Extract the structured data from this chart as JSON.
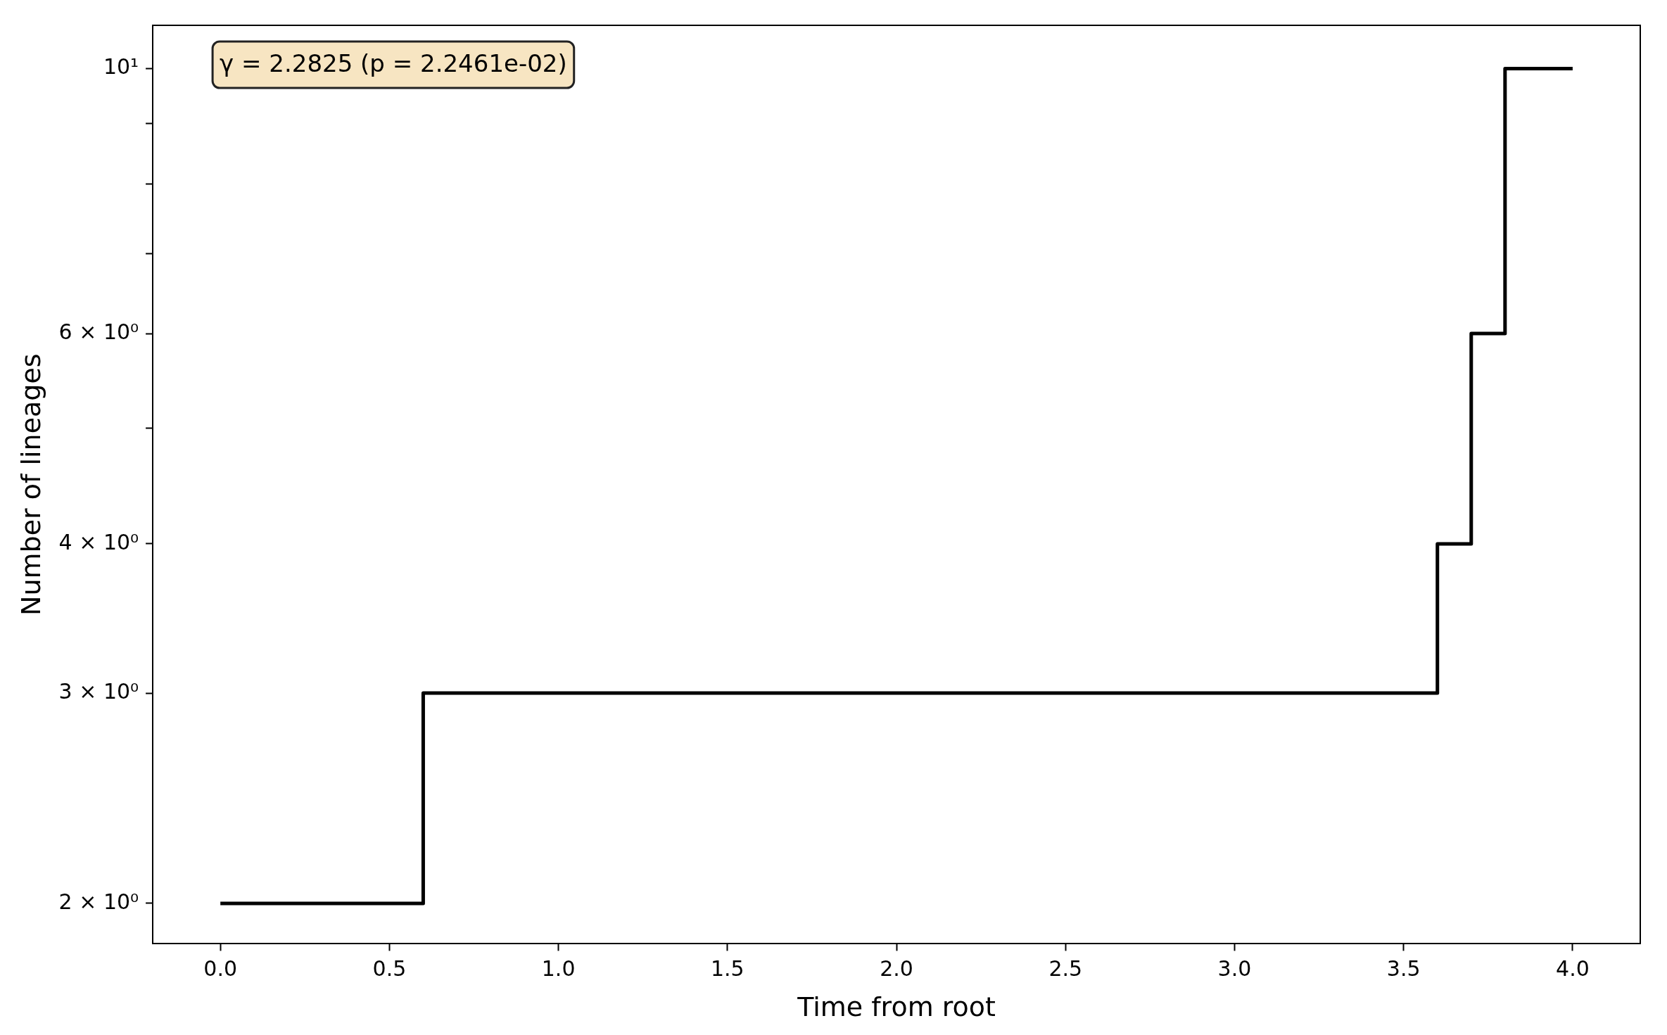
{
  "chart_data": {
    "type": "step",
    "xlabel": "Time from root",
    "ylabel": "Number of lineages",
    "x": [
      0,
      0.6,
      3.6,
      3.7,
      3.8,
      4.0
    ],
    "series": [
      {
        "color": "#000000",
        "values": [
          2,
          3,
          4,
          6,
          10,
          10
        ]
      }
    ],
    "log": "y",
    "xlim": [
      -0.2,
      4.2
    ],
    "ylim": [
      1.85,
      10.87
    ],
    "xticks": [
      {
        "value": 0,
        "label": "0.0"
      },
      {
        "value": 0.5,
        "label": "0.5"
      },
      {
        "value": 1,
        "label": "1.0"
      },
      {
        "value": 1.5,
        "label": "1.5"
      },
      {
        "value": 2,
        "label": "2.0"
      },
      {
        "value": 2.5,
        "label": "2.5"
      },
      {
        "value": 3,
        "label": "3.0"
      },
      {
        "value": 3.5,
        "label": "3.5"
      },
      {
        "value": 4,
        "label": "4.0"
      }
    ],
    "yticks": [
      {
        "value": 2,
        "label": "2 × 10⁰"
      },
      {
        "value": 3,
        "label": "3 × 10⁰"
      },
      {
        "value": 4,
        "label": "4 × 10⁰"
      },
      {
        "value": 5,
        "label": null
      },
      {
        "value": 6,
        "label": "6 × 10⁰"
      },
      {
        "value": 7,
        "label": null
      },
      {
        "value": 8,
        "label": null
      },
      {
        "value": 9,
        "label": null
      },
      {
        "value": 10,
        "label": "10¹"
      }
    ],
    "grid": false,
    "legend": false,
    "marker": "none",
    "line_style": "solid",
    "annotations": [
      "γ = 2.2825 (p = 2.2461e-02)"
    ]
  }
}
